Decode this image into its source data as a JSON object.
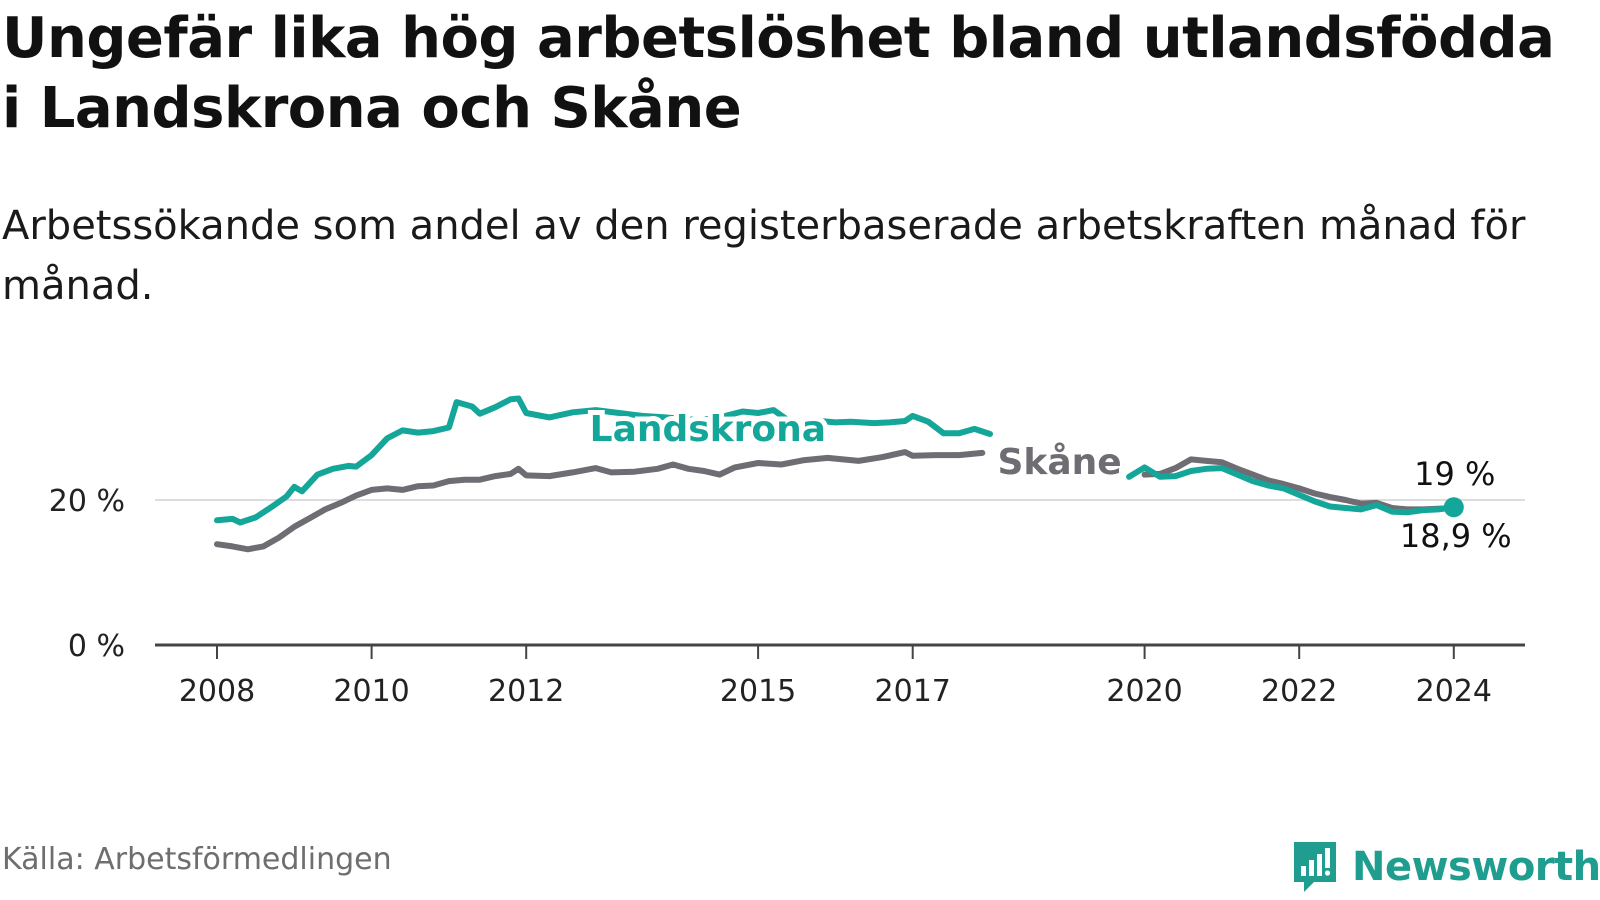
{
  "header": {
    "title": "Ungefär lika hög arbetslöshet bland utlandsfödda i Landskrona och Skåne",
    "subtitle": "Arbetssökande som andel av den registerbaserade arbetskraften månad för månad."
  },
  "footer": {
    "source": "Källa: Arbetsförmedlingen",
    "brand": "Newsworthy"
  },
  "colors": {
    "landskrona": "#13a699",
    "skane": "#6f6c73",
    "grid": "#dddddd",
    "axis": "#444444",
    "brand": "#1f9e8f"
  },
  "chart_data": {
    "type": "line",
    "ylim": [
      0,
      35
    ],
    "yticks": [
      0,
      20
    ],
    "ytick_labels": [
      "0 %",
      "20 %"
    ],
    "xlim": [
      2007.8,
      2025.0
    ],
    "xticks": [
      2008,
      2010,
      2012,
      2015,
      2017,
      2020,
      2022,
      2024
    ],
    "xtick_labels": [
      "2008",
      "2010",
      "2012",
      "2015",
      "2017",
      "2020",
      "2022",
      "2024"
    ],
    "grid": "horizontal",
    "series": [
      {
        "name": "Skåne",
        "label_position": "inline",
        "end_label": "18,9 %",
        "x": [
          2008.0,
          2008.2,
          2008.4,
          2008.5,
          2008.6,
          2008.8,
          2009.0,
          2009.2,
          2009.4,
          2009.6,
          2009.8,
          2010.0,
          2010.2,
          2010.4,
          2010.6,
          2010.8,
          2011.0,
          2011.2,
          2011.4,
          2011.6,
          2011.8,
          2011.9,
          2012.0,
          2012.3,
          2012.6,
          2012.9,
          2013.1,
          2013.4,
          2013.7,
          2013.9,
          2014.1,
          2014.3,
          2014.5,
          2014.7,
          2015.0,
          2015.3,
          2015.6,
          2015.9,
          2016.1,
          2016.3,
          2016.6,
          2016.9,
          2017.0,
          2017.3,
          2017.6,
          2017.9,
          2020.0,
          2020.2,
          2020.4,
          2020.6,
          2020.8,
          2021.0,
          2021.2,
          2021.4,
          2021.6,
          2021.8,
          2022.0,
          2022.2,
          2022.4,
          2022.6,
          2022.8,
          2023.0,
          2023.2,
          2023.4,
          2023.6,
          2023.8,
          2024.0
        ],
        "y": [
          13.9,
          13.6,
          13.2,
          13.4,
          13.6,
          14.8,
          16.3,
          17.5,
          18.7,
          19.6,
          20.6,
          21.4,
          21.6,
          21.4,
          21.9,
          22.0,
          22.6,
          22.8,
          22.8,
          23.3,
          23.6,
          24.3,
          23.4,
          23.3,
          23.8,
          24.4,
          23.8,
          23.9,
          24.3,
          24.9,
          24.3,
          24.0,
          23.5,
          24.5,
          25.1,
          24.9,
          25.5,
          25.8,
          25.6,
          25.4,
          25.9,
          26.6,
          26.1,
          26.2,
          26.2,
          26.5,
          23.5,
          23.6,
          24.4,
          25.6,
          25.4,
          25.2,
          24.3,
          23.5,
          22.7,
          22.2,
          21.6,
          20.9,
          20.4,
          20.0,
          19.5,
          19.6,
          18.9,
          18.7,
          18.7,
          18.8,
          18.9
        ]
      },
      {
        "name": "Landskrona",
        "label_position": "inline",
        "end_label": "19 %",
        "x": [
          2008.0,
          2008.2,
          2008.3,
          2008.5,
          2008.7,
          2008.9,
          2009.0,
          2009.1,
          2009.3,
          2009.5,
          2009.7,
          2009.8,
          2010.0,
          2010.2,
          2010.4,
          2010.6,
          2010.8,
          2011.0,
          2011.1,
          2011.3,
          2011.4,
          2011.6,
          2011.8,
          2011.9,
          2012.0,
          2012.3,
          2012.6,
          2012.9,
          2013.2,
          2013.5,
          2013.8,
          2014.1,
          2014.3,
          2014.5,
          2014.8,
          2015.0,
          2015.2,
          2015.4,
          2015.6,
          2015.8,
          2016.0,
          2016.2,
          2016.5,
          2016.7,
          2016.9,
          2017.0,
          2017.2,
          2017.4,
          2017.6,
          2017.8,
          2018.0,
          2019.8,
          2020.0,
          2020.2,
          2020.4,
          2020.6,
          2020.8,
          2021.0,
          2021.2,
          2021.4,
          2021.6,
          2021.8,
          2022.0,
          2022.2,
          2022.4,
          2022.6,
          2022.8,
          2023.0,
          2023.2,
          2023.4,
          2023.6,
          2023.8,
          2024.0
        ],
        "y": [
          17.2,
          17.4,
          16.9,
          17.6,
          19.0,
          20.5,
          21.8,
          21.2,
          23.5,
          24.3,
          24.7,
          24.6,
          26.2,
          28.5,
          29.6,
          29.3,
          29.5,
          30.0,
          33.5,
          32.9,
          31.9,
          32.8,
          33.9,
          34.0,
          32.0,
          31.4,
          32.1,
          32.4,
          32.0,
          31.6,
          31.4,
          31.1,
          31.1,
          31.4,
          32.2,
          32.0,
          32.4,
          30.9,
          30.8,
          30.9,
          30.7,
          30.8,
          30.6,
          30.7,
          30.9,
          31.6,
          30.8,
          29.2,
          29.2,
          29.8,
          29.1,
          23.2,
          24.5,
          23.2,
          23.3,
          24.0,
          24.3,
          24.4,
          23.5,
          22.6,
          22.0,
          21.6,
          20.7,
          19.8,
          19.1,
          18.9,
          18.7,
          19.3,
          18.4,
          18.3,
          18.6,
          18.7,
          19.0
        ]
      }
    ]
  }
}
